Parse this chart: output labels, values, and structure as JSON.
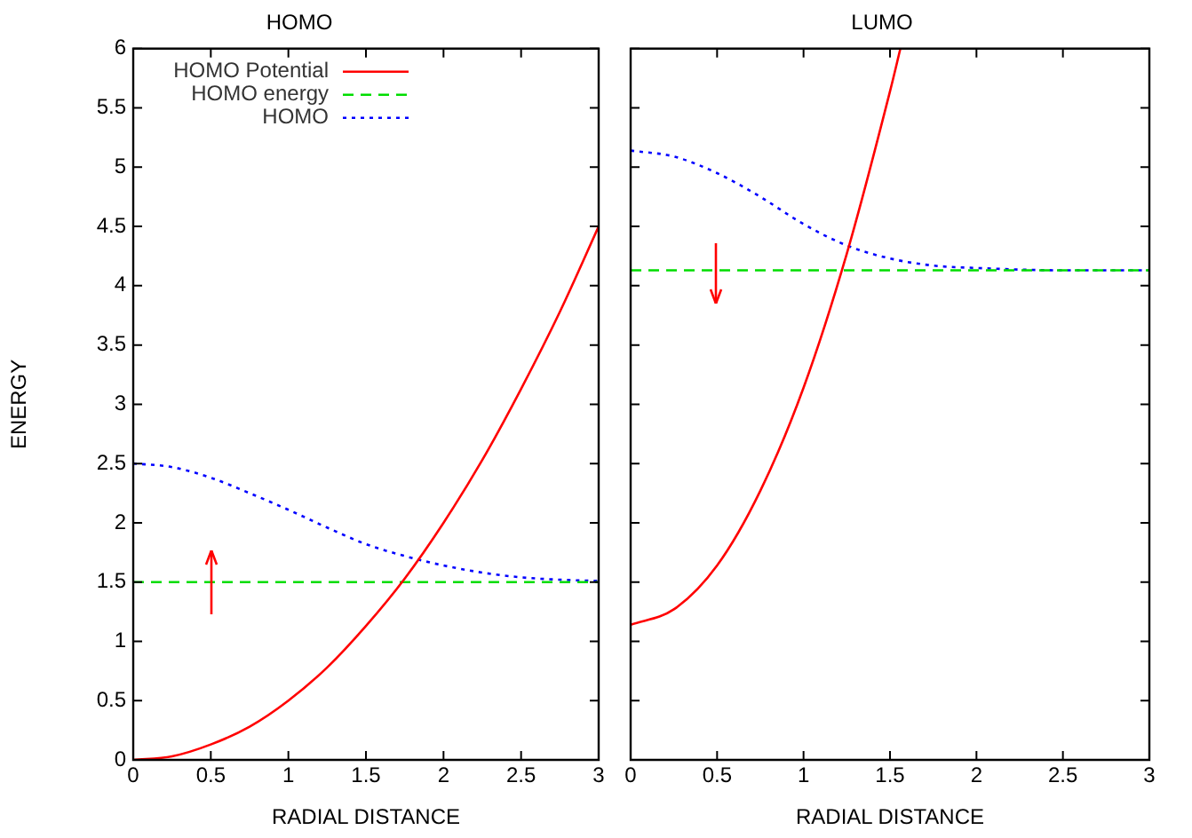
{
  "chart_data": [
    {
      "type": "line",
      "title": "HOMO",
      "xlabel": "RADIAL DISTANCE",
      "ylabel": "ENERGY",
      "xlim": [
        0,
        3
      ],
      "xticks": [
        0,
        0.5,
        1,
        1.5,
        2,
        2.5,
        3
      ],
      "ylim": [
        0,
        6
      ],
      "yticks": [
        0,
        0.5,
        1,
        1.5,
        2,
        2.5,
        3,
        3.5,
        4,
        4.5,
        5,
        5.5,
        6
      ],
      "grid": false,
      "legend": "top left",
      "marker": "none",
      "series": [
        {
          "name": "HOMO Potential",
          "color": "#ff0000",
          "line_style": "solid",
          "x": [
            0,
            0.25,
            0.5,
            0.75,
            1,
            1.25,
            1.5,
            1.75,
            2,
            2.25,
            2.5,
            2.75,
            3
          ],
          "values": [
            0,
            0.03,
            0.13,
            0.28,
            0.5,
            0.78,
            1.13,
            1.53,
            2,
            2.53,
            3.13,
            3.78,
            4.5
          ]
        },
        {
          "name": "HOMO energy",
          "color": "#00dd00",
          "line_style": "dashed",
          "x": [
            0,
            3
          ],
          "values": [
            1.5,
            1.5
          ]
        },
        {
          "name": "HOMO",
          "color": "#0000ff",
          "line_style": "dotted",
          "x": [
            0,
            0.25,
            0.5,
            0.75,
            1,
            1.25,
            1.5,
            1.75,
            2,
            2.25,
            2.5,
            2.75,
            3
          ],
          "values": [
            2.5,
            2.47,
            2.38,
            2.25,
            2.11,
            1.96,
            1.82,
            1.72,
            1.64,
            1.58,
            1.54,
            1.52,
            1.51
          ]
        }
      ]
    },
    {
      "type": "line",
      "title": "LUMO",
      "xlabel": "RADIAL DISTANCE",
      "xlim": [
        0,
        3
      ],
      "xticks": [
        0,
        0.5,
        1,
        1.5,
        2,
        2.5,
        3
      ],
      "ylim": [
        0,
        6
      ],
      "yticks": [
        0,
        0.5,
        1,
        1.5,
        2,
        2.5,
        3,
        3.5,
        4,
        4.5,
        5,
        5.5,
        6
      ],
      "grid": false,
      "marker": "none",
      "tick_labels": "x",
      "series": [
        {
          "color": "#ff0000",
          "line_style": "solid",
          "x": [
            0,
            0.25,
            0.5,
            0.75,
            1,
            1.25,
            1.5,
            1.56
          ],
          "values": [
            1.14,
            1.27,
            1.64,
            2.27,
            3.14,
            4.27,
            5.64,
            6
          ]
        },
        {
          "color": "#00dd00",
          "line_style": "dashed",
          "x": [
            0,
            3
          ],
          "values": [
            4.13,
            4.13
          ]
        },
        {
          "color": "#0000ff",
          "line_style": "dotted",
          "x": [
            0,
            0.25,
            0.5,
            0.75,
            1,
            1.25,
            1.5,
            1.75,
            2,
            2.5,
            3
          ],
          "values": [
            5.14,
            5.09,
            4.95,
            4.75,
            4.52,
            4.34,
            4.23,
            4.17,
            4.15,
            4.13,
            4.13
          ]
        }
      ]
    }
  ]
}
